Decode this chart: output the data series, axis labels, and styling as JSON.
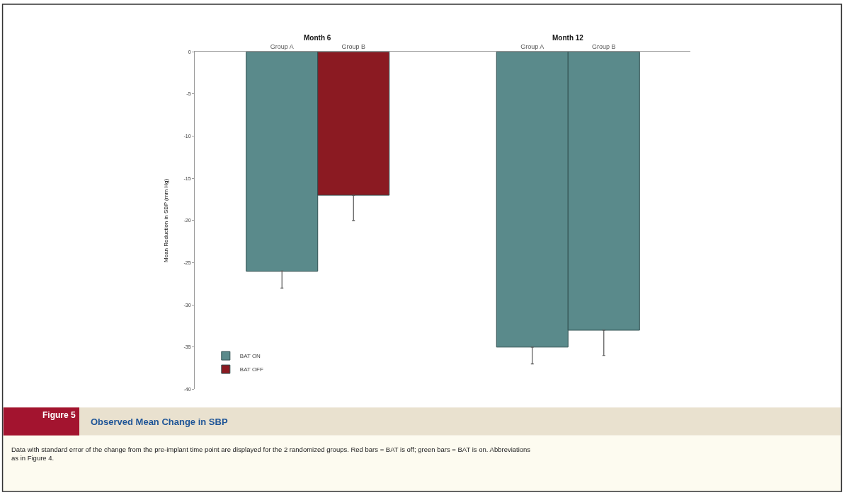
{
  "chart_data": {
    "type": "bar",
    "title": "Observed Mean Change in SBP",
    "ylabel": "Mean Reduction in SBP (mm Hg)",
    "categories": [
      "Group A",
      "Group B",
      "Group A",
      "Group B"
    ],
    "series": [
      {
        "name": "BAT ON",
        "color": "#5a8a8b",
        "values": [
          -26,
          null,
          -35,
          -33
        ],
        "errors": [
          [
            -28,
            -26
          ],
          null,
          [
            -37,
            -35
          ],
          [
            -36,
            -33
          ]
        ]
      },
      {
        "name": "BAT OFF",
        "color": "#8b1a22",
        "values": [
          null,
          -17,
          null,
          null
        ],
        "errors": [
          null,
          [
            -20,
            -17
          ],
          null,
          null
        ]
      }
    ],
    "ylim": [
      -40,
      0
    ],
    "yticks": [
      0,
      -5,
      -10,
      -15,
      -20,
      -25,
      -30,
      -35,
      -40
    ],
    "legend": "bottom left",
    "annotations": [
      "Month 6",
      "Month 12",
      "Figure 5",
      "Data with standard error of the change from the pre-implant time point are displayed for the 2 randomized groups. Red bars = BAT is off; green bars = BAT is on. Abbreviations as in Figure 4."
    ]
  }
}
